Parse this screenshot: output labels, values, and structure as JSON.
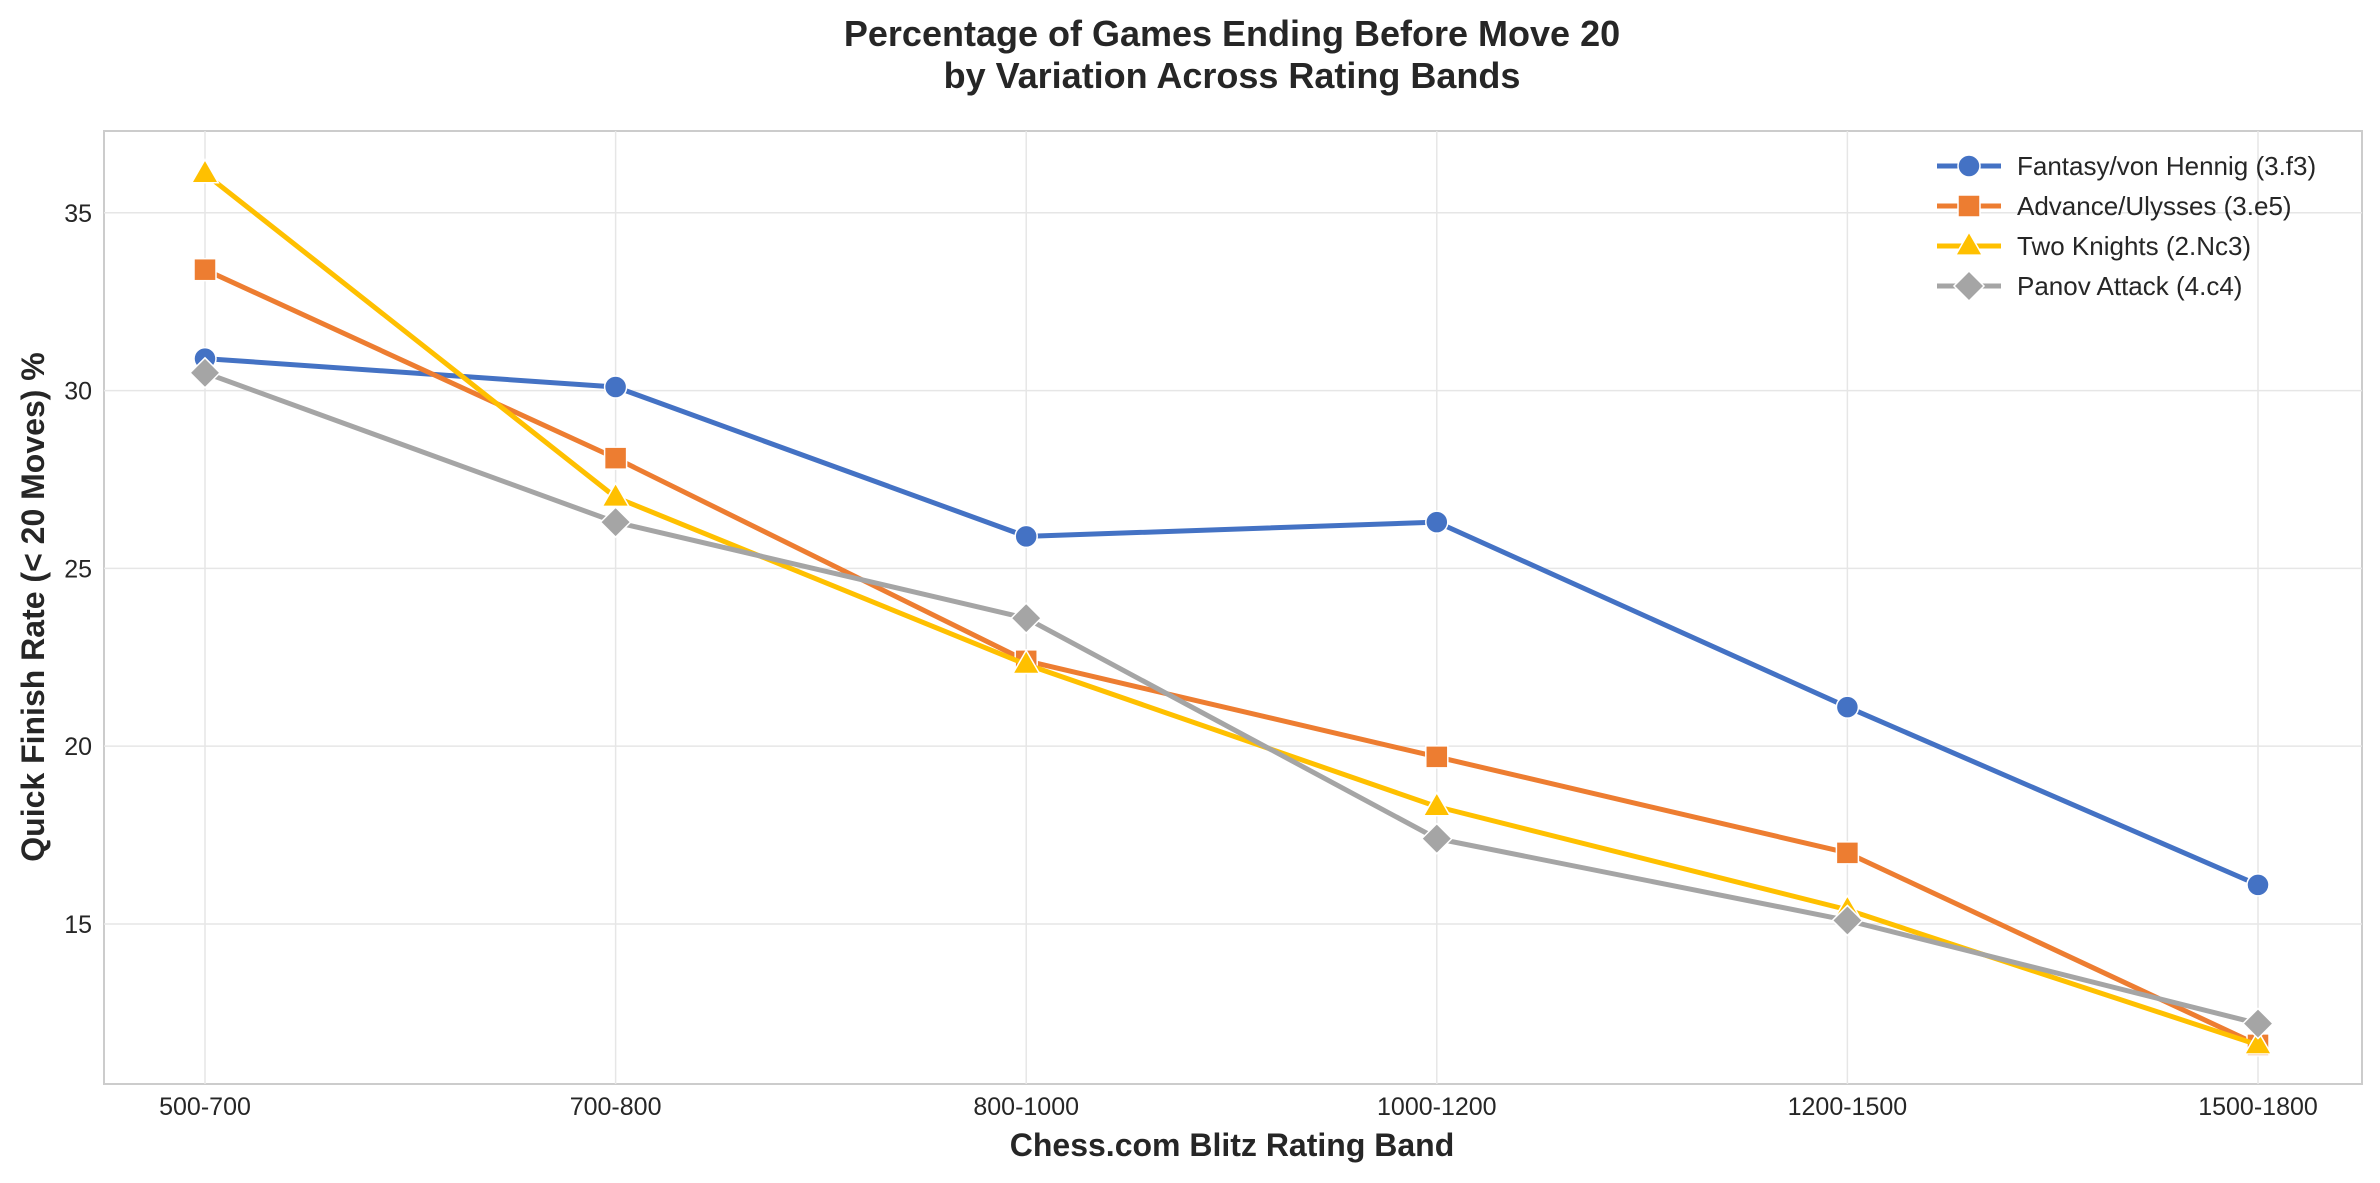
{
  "chart_data": {
    "type": "line",
    "title_line1": "Percentage of Games Ending Before Move 20",
    "title_line2": "by Variation Across Rating Bands",
    "xlabel": "Chess.com Blitz Rating Band",
    "ylabel": "Quick Finish Rate (< 20 Moves) %",
    "categories": [
      "500-700",
      "700-800",
      "800-1000",
      "1000-1200",
      "1200-1500",
      "1500-1800"
    ],
    "ylim": [
      10.5,
      37.3
    ],
    "yticks": [
      15,
      20,
      25,
      30,
      35
    ],
    "grid": true,
    "legend_position": "top-right",
    "series": [
      {
        "name": "Fantasy/von Hennig (3.f3)",
        "marker": "circle",
        "color": "#4472c4",
        "values": [
          30.9,
          30.1,
          25.9,
          26.3,
          21.1,
          16.1
        ]
      },
      {
        "name": "Advance/Ulysses (3.e5)",
        "marker": "square",
        "color": "#ed7d31",
        "values": [
          33.4,
          28.1,
          22.4,
          19.7,
          17.0,
          11.6
        ]
      },
      {
        "name": "Two Knights (2.Nc3)",
        "marker": "triangle",
        "color": "#ffc000",
        "values": [
          36.1,
          27.0,
          22.3,
          18.3,
          15.4,
          11.6
        ]
      },
      {
        "name": "Panov Attack (4.c4)",
        "marker": "diamond",
        "color": "#a5a5a5",
        "values": [
          30.5,
          26.3,
          23.6,
          17.4,
          15.1,
          12.2
        ]
      }
    ]
  }
}
